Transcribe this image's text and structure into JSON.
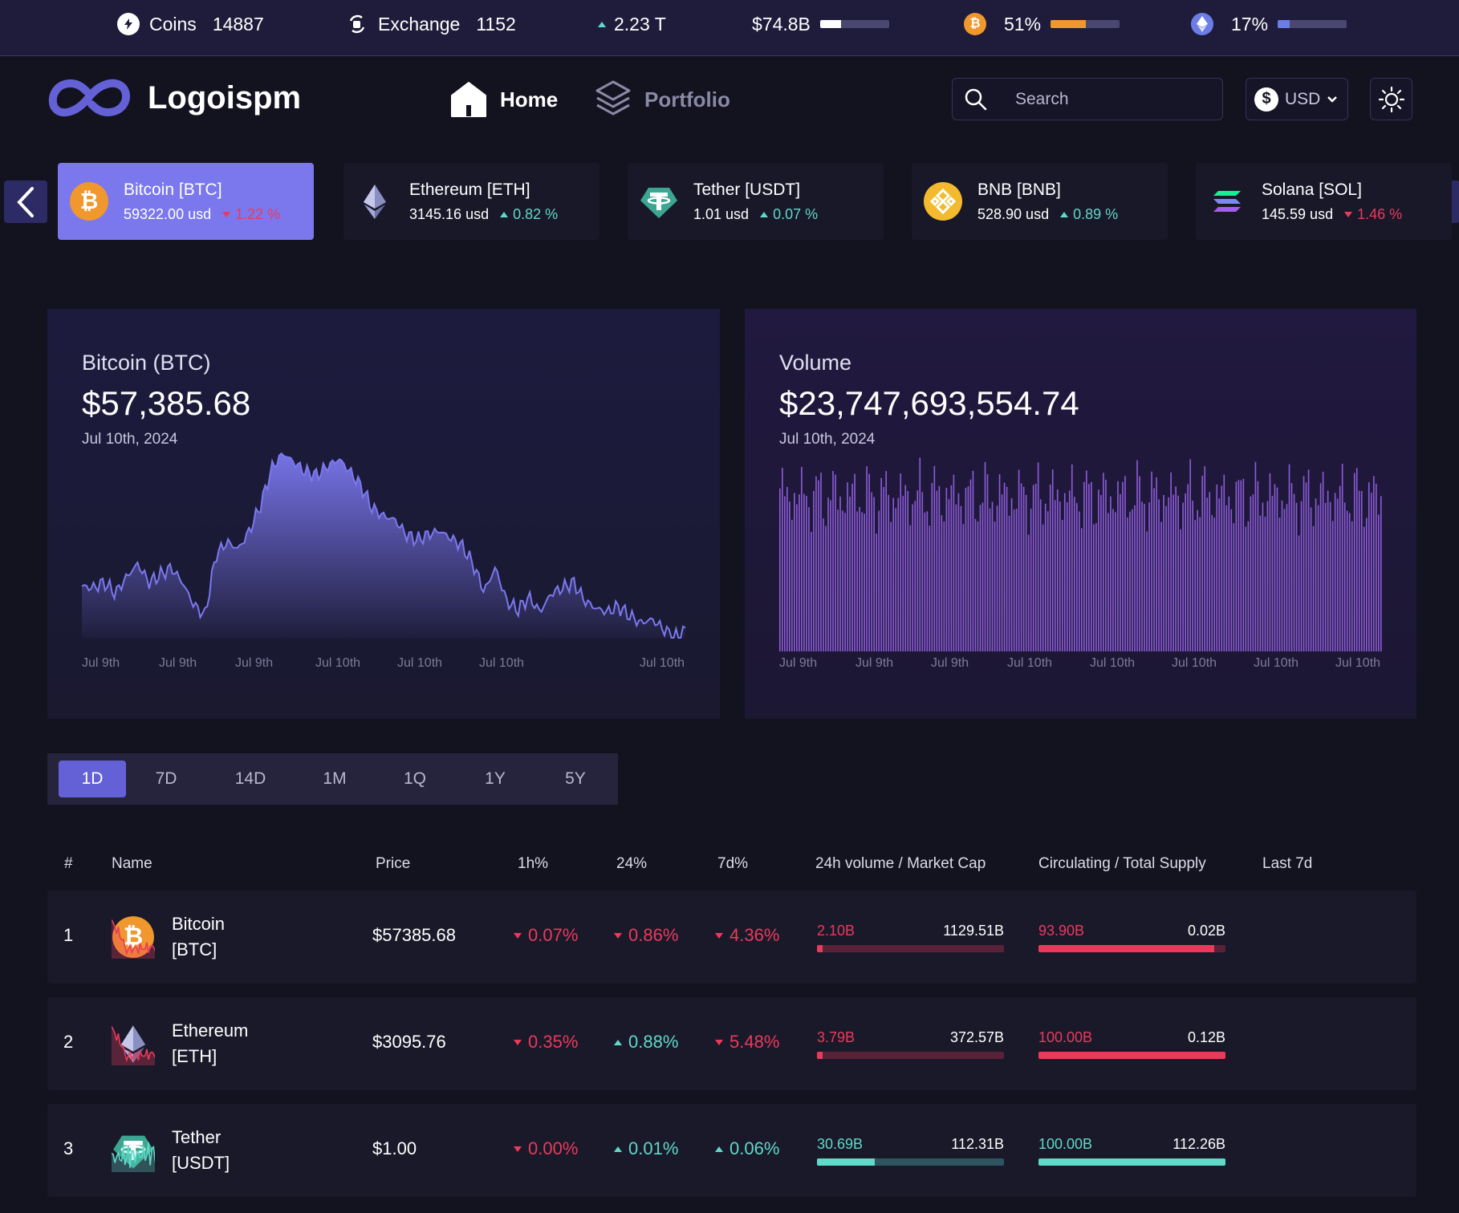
{
  "stats": {
    "coins_label": "Coins",
    "coins_value": "14887",
    "exchange_label": "Exchange",
    "exchange_value": "1152",
    "market_change": "2.23 T",
    "volume_value": "$74.8B",
    "volume_fraction": 0.3,
    "btc_dominance": "51%",
    "btc_fraction": 0.51,
    "eth_dominance": "17%",
    "eth_fraction": 0.17
  },
  "header": {
    "logo_text": "Logoispm",
    "nav_home": "Home",
    "nav_portfolio": "Portfolio",
    "search_placeholder": "Search",
    "currency": "USD"
  },
  "carousel": [
    {
      "name": "Bitcoin [BTC]",
      "price": "59322.00 usd",
      "change": "1.22 %",
      "dir": "down",
      "icon": "bitcoin-icon",
      "active": true
    },
    {
      "name": "Ethereum [ETH]",
      "price": "3145.16 usd",
      "change": "0.82 %",
      "dir": "up",
      "icon": "ethereum-icon",
      "active": false
    },
    {
      "name": "Tether [USDT]",
      "price": "1.01 usd",
      "change": "0.07 %",
      "dir": "up",
      "icon": "tether-icon",
      "active": false
    },
    {
      "name": "BNB [BNB]",
      "price": "528.90 usd",
      "change": "0.89 %",
      "dir": "up",
      "icon": "bnb-icon",
      "active": false
    },
    {
      "name": "Solana [SOL]",
      "price": "145.59 usd",
      "change": "1.46 %",
      "dir": "down",
      "icon": "solana-icon",
      "active": false
    }
  ],
  "price_panel": {
    "title": "Bitcoin (BTC)",
    "value": "$57,385.68",
    "date": "Jul 10th, 2024"
  },
  "volume_panel": {
    "title": "Volume",
    "value": "$23,747,693,554.74",
    "date": "Jul 10th, 2024"
  },
  "chart_data": [
    {
      "type": "area",
      "xticks": [
        "Jul 9th",
        "Jul 9th",
        "Jul 9th",
        "Jul 10th",
        "Jul 10th",
        "Jul 10th",
        "Jul 10th"
      ],
      "y_relative": [
        0.28,
        0.27,
        0.3,
        0.24,
        0.33,
        0.4,
        0.3,
        0.34,
        0.38,
        0.3,
        0.18,
        0.12,
        0.45,
        0.52,
        0.48,
        0.58,
        0.72,
        0.92,
        1.0,
        0.95,
        0.9,
        0.88,
        0.93,
        0.97,
        0.9,
        0.82,
        0.7,
        0.66,
        0.64,
        0.56,
        0.53,
        0.56,
        0.58,
        0.54,
        0.5,
        0.4,
        0.25,
        0.38,
        0.2,
        0.15,
        0.22,
        0.14,
        0.24,
        0.27,
        0.3,
        0.2,
        0.16,
        0.14,
        0.17,
        0.12,
        0.08,
        0.1,
        0.05,
        0.0,
        0.04
      ]
    },
    {
      "type": "bar",
      "xticks": [
        "Jul 9th",
        "Jul 9th",
        "Jul 9th",
        "Jul 10th",
        "Jul 10th",
        "Jul 10th",
        "Jul 10th",
        "Jul 10th"
      ]
    }
  ],
  "range_tabs": [
    "1D",
    "7D",
    "14D",
    "1M",
    "1Q",
    "1Y",
    "5Y"
  ],
  "table": {
    "headers": {
      "num": "#",
      "name": "Name",
      "price": "Price",
      "h1": "1h%",
      "h24": "24%",
      "d7": "7d%",
      "vol_mcap": "24h volume / Market Cap",
      "supply": "Circulating / Total Supply",
      "last7": "Last 7d"
    },
    "rows": [
      {
        "rank": "1",
        "name": "Bitcoin",
        "symbol": "[BTC]",
        "price": "$57385.68",
        "h1": "0.07%",
        "h1_dir": "down",
        "h24": "0.86%",
        "h24_dir": "down",
        "d7": "4.36%",
        "d7_dir": "down",
        "vol": "2.10B",
        "mcap": "1129.51B",
        "vol_fraction": 0.02,
        "circ": "93.90B",
        "total": "0.02B",
        "supply_fraction": 0.94,
        "trend": "down",
        "icon": "bitcoin-icon"
      },
      {
        "rank": "2",
        "name": "Ethereum",
        "symbol": "[ETH]",
        "price": "$3095.76",
        "h1": "0.35%",
        "h1_dir": "down",
        "h24": "0.88%",
        "h24_dir": "up",
        "d7": "5.48%",
        "d7_dir": "down",
        "vol": "3.79B",
        "mcap": "372.57B",
        "vol_fraction": 0.03,
        "circ": "100.00B",
        "total": "0.12B",
        "supply_fraction": 1.0,
        "trend": "down",
        "icon": "ethereum-icon"
      },
      {
        "rank": "3",
        "name": "Tether",
        "symbol": "[USDT]",
        "price": "$1.00",
        "h1": "0.00%",
        "h1_dir": "down",
        "h24": "0.01%",
        "h24_dir": "up",
        "d7": "0.06%",
        "d7_dir": "up",
        "vol": "30.69B",
        "mcap": "112.31B",
        "vol_fraction": 0.31,
        "circ": "100.00B",
        "total": "112.26B",
        "supply_fraction": 1.0,
        "trend": "up",
        "icon": "tether-icon"
      }
    ]
  },
  "colors": {
    "accent": "#6461d6",
    "up": "#5fd9c8",
    "down": "#ea3a5c",
    "btc": "#f0972e",
    "eth": "#6c7ee6"
  }
}
